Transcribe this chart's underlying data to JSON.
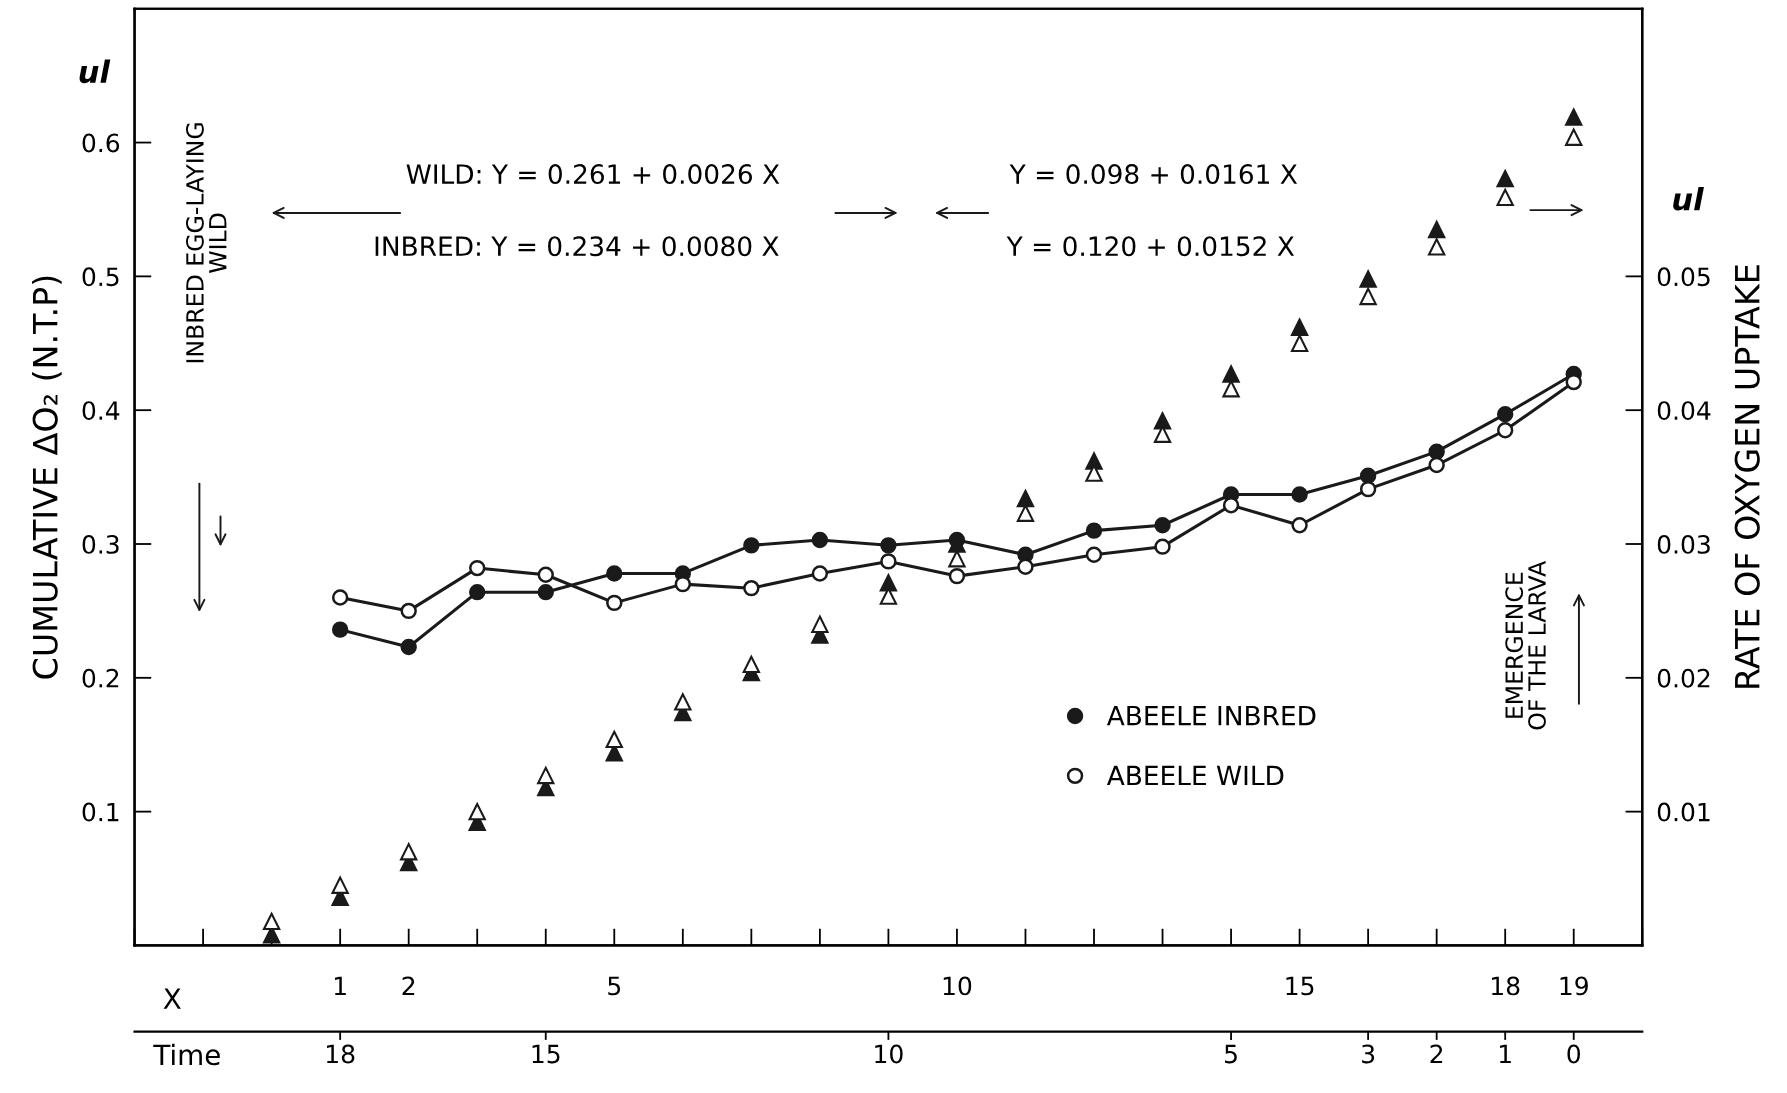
{
  "chart_data": {
    "type": "line",
    "xlabel": "X",
    "x2label": "Time",
    "ylabel": "CUMULATIVE ΔO₂ (N.T.P)",
    "y2label": "RATE OF OXYGEN UPTAKE",
    "xlim": [
      -2,
      20
    ],
    "xticks": [
      1,
      2,
      5,
      10,
      15,
      18,
      19
    ],
    "x2lim": [
      21,
      -1
    ],
    "x2ticks": [
      18,
      15,
      10,
      5,
      3,
      2,
      1,
      0
    ],
    "ylim": [
      0,
      0.7
    ],
    "yticks": [
      0.1,
      0.2,
      0.3,
      0.4,
      0.5,
      0.6
    ],
    "y2lim": [
      0,
      0.07
    ],
    "y2ticks": [
      0.01,
      0.02,
      0.03,
      0.04,
      0.05
    ],
    "grid": false,
    "legend": "lower right",
    "annotations": [
      "ul",
      "ul",
      "WILD: Y = 0.261 + 0.0026 X",
      "INBRED: Y = 0.234 + 0.0080 X",
      "Y = 0.098 + 0.0161 X",
      "Y = 0.120 + 0.0152 X",
      "INBRED EGG-LAYING\nWILD",
      "EMERGENCE\nOF THE LARVA"
    ],
    "series": [
      {
        "name": "ABEELE INBRED",
        "axis": "y2",
        "marker": "circle",
        "color": "#1a1a1a",
        "x": [
          1,
          2,
          3,
          4,
          5,
          6,
          7,
          8,
          9,
          10,
          11,
          12,
          13,
          14,
          15,
          16,
          17,
          18,
          19
        ],
        "values": [
          0.0236,
          0.0223,
          0.0264,
          0.0264,
          0.0278,
          0.0278,
          0.0299,
          0.0303,
          0.0299,
          0.0303,
          0.0292,
          0.031,
          0.0314,
          0.0337,
          0.0337,
          0.0351,
          0.0369,
          0.0397,
          0.0427
        ]
      },
      {
        "name": "ABEELE WILD",
        "axis": "y2",
        "marker": "circle",
        "color": "#ffffff",
        "x": [
          1,
          2,
          3,
          4,
          5,
          6,
          7,
          8,
          9,
          10,
          11,
          12,
          13,
          14,
          15,
          16,
          17,
          18,
          19
        ],
        "values": [
          0.026,
          0.025,
          0.0282,
          0.0277,
          0.0256,
          0.027,
          0.0267,
          0.0278,
          0.0287,
          0.0276,
          0.0283,
          0.0292,
          0.0298,
          0.0329,
          0.0314,
          0.0341,
          0.0359,
          0.0385,
          0.0421
        ]
      },
      {
        "type": "scatter",
        "marker": "triangle",
        "color": "#1a1a1a",
        "x": [
          0,
          1,
          2,
          3,
          4,
          5,
          6,
          7,
          8,
          9,
          10,
          11,
          12,
          13,
          14,
          15,
          16,
          17,
          18,
          19
        ],
        "values": [
          0.008,
          0.036,
          0.062,
          0.092,
          0.118,
          0.144,
          0.174,
          0.204,
          0.232,
          0.271,
          0.3,
          0.334,
          0.362,
          0.392,
          0.427,
          0.462,
          0.498,
          0.535,
          0.573,
          0.619
        ]
      },
      {
        "type": "scatter",
        "marker": "triangle",
        "color": "#ffffff",
        "x": [
          0,
          1,
          2,
          3,
          4,
          5,
          6,
          7,
          8,
          9,
          10,
          11,
          12,
          13,
          14,
          15,
          16,
          17,
          18,
          19
        ],
        "values": [
          0.018,
          0.045,
          0.07,
          0.1,
          0.127,
          0.154,
          0.182,
          0.21,
          0.24,
          0.261,
          0.289,
          0.323,
          0.353,
          0.382,
          0.416,
          0.45,
          0.485,
          0.522,
          0.559,
          0.604
        ]
      }
    ]
  }
}
